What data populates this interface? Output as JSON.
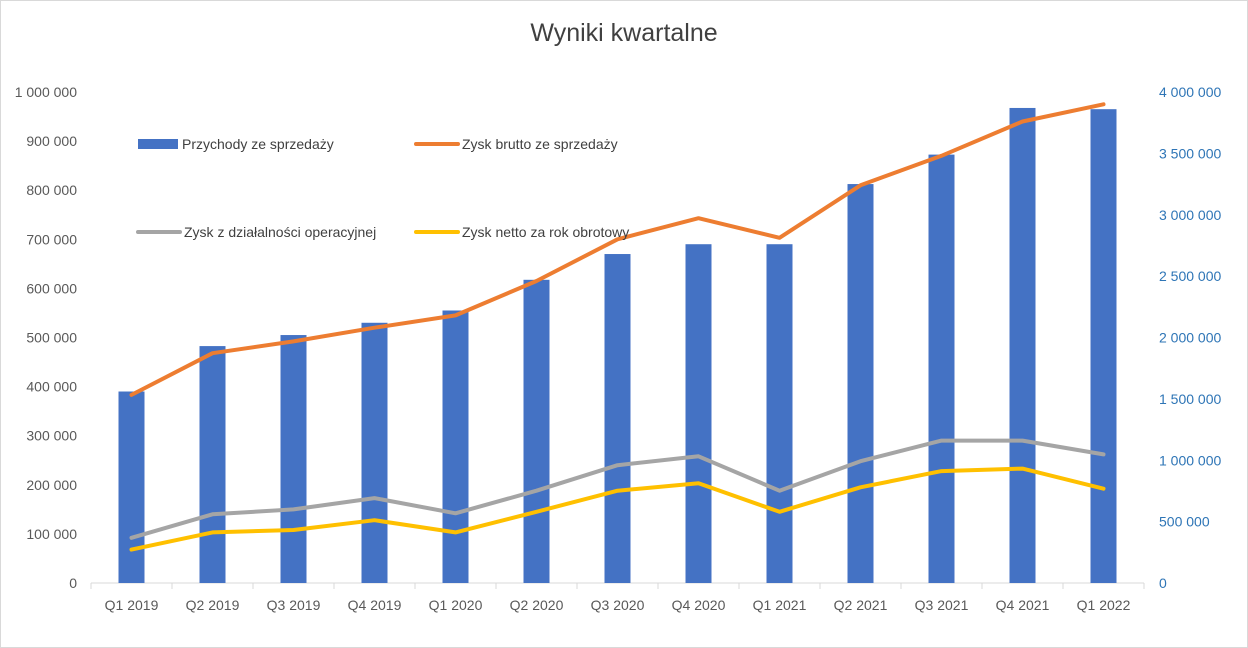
{
  "chart_data": {
    "type": "bar",
    "title": "Wyniki kwartalne",
    "categories": [
      "Q1 2019",
      "Q2 2019",
      "Q3 2019",
      "Q4 2019",
      "Q1 2020",
      "Q2 2020",
      "Q3 2020",
      "Q4 2020",
      "Q1 2021",
      "Q2 2021",
      "Q3 2021",
      "Q4 2021",
      "Q1 2022"
    ],
    "y_left": {
      "ylim": [
        0,
        1000000
      ],
      "ticks": [
        0,
        100000,
        200000,
        300000,
        400000,
        500000,
        600000,
        700000,
        800000,
        900000,
        1000000
      ],
      "tick_labels": [
        "0",
        "100 000",
        "200 000",
        "300 000",
        "400 000",
        "500 000",
        "600 000",
        "700 000",
        "800 000",
        "900 000",
        "1 000 000"
      ]
    },
    "y_right": {
      "ylim": [
        0,
        4000000
      ],
      "ticks": [
        0,
        500000,
        1000000,
        1500000,
        2000000,
        2500000,
        3000000,
        3500000,
        4000000
      ],
      "tick_labels": [
        "0",
        "500 000",
        "1 000 000",
        "1 500 000",
        "2 000 000",
        "2 500 000",
        "3 000 000",
        "3 500 000",
        "4 000 000"
      ],
      "color": "#2e75b6"
    },
    "series": [
      {
        "name": "Przychody ze sprzedaży",
        "type": "bar",
        "axis": "right",
        "color": "#4472c4",
        "values": [
          1560000,
          1930000,
          2020000,
          2120000,
          2220000,
          2470000,
          2680000,
          2760000,
          2760000,
          3250000,
          3490000,
          3870000,
          3860000
        ]
      },
      {
        "name": "Zysk brutto ze sprzedaży",
        "type": "line",
        "axis": "left",
        "color": "#ed7d31",
        "values": [
          383000,
          468000,
          492000,
          520000,
          545000,
          615000,
          700000,
          743000,
          703000,
          810000,
          870000,
          940000,
          975000
        ]
      },
      {
        "name": "Zysk z działalności operacyjnej",
        "type": "line",
        "axis": "left",
        "color": "#a5a5a5",
        "values": [
          92000,
          140000,
          150000,
          173000,
          142000,
          188000,
          240000,
          258000,
          188000,
          248000,
          290000,
          290000,
          262000
        ]
      },
      {
        "name": "Zysk netto za rok obrotowy",
        "type": "line",
        "axis": "left",
        "color": "#ffc000",
        "values": [
          68000,
          103000,
          108000,
          128000,
          103000,
          145000,
          188000,
          203000,
          145000,
          195000,
          228000,
          233000,
          192000
        ]
      }
    ],
    "grid": false,
    "legend": "top-left"
  }
}
